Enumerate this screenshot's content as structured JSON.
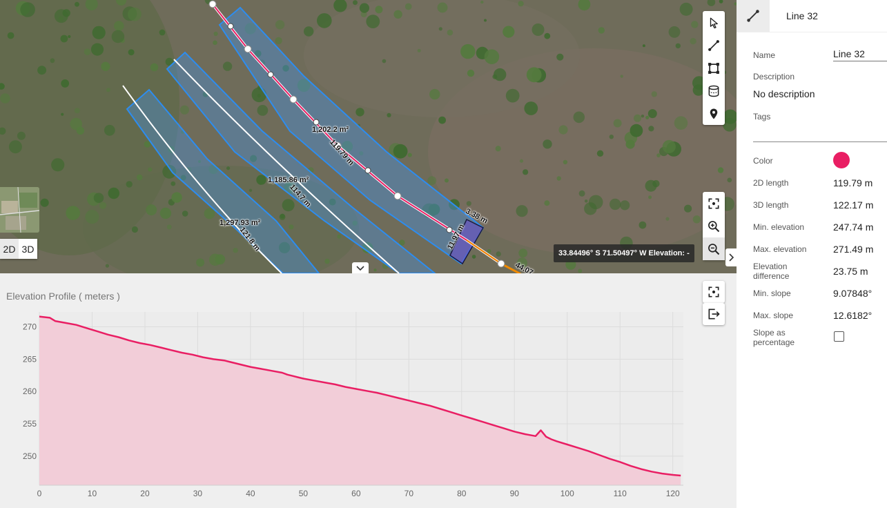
{
  "map": {
    "areas": [
      {
        "label": "1,202.2 m²"
      },
      {
        "label": "1,185.86 m²"
      },
      {
        "label": "1,297.93 m²"
      }
    ],
    "line_labels": [
      "119.79 m",
      "114.7 m",
      "121.8 m",
      "3.38 m",
      "11.97 m",
      "44.07"
    ],
    "coords": "33.84496° S 71.50497° W   Elevation: -",
    "dim_2d": "2D",
    "dim_3d": "3D",
    "tools": [
      "cursor-icon",
      "line-tool-icon",
      "area-tool-icon",
      "volume-tool-icon",
      "marker-icon"
    ],
    "zoom_tools": [
      "fit-view-icon",
      "zoom-in-icon",
      "zoom-out-icon"
    ],
    "colors": {
      "line": "#e91e63",
      "buffer_fill": "#4a8fd6",
      "buffer_stroke": "#2d8df0",
      "measure": "#f08a00"
    }
  },
  "elevation": {
    "title": "Elevation Profile ( meters )"
  },
  "chart_data": {
    "type": "area",
    "title": "Elevation Profile ( meters )",
    "xlabel": "",
    "ylabel": "",
    "xlim": [
      0,
      122
    ],
    "ylim": [
      245.5,
      272.3
    ],
    "xticks": [
      0,
      10,
      20,
      30,
      40,
      50,
      60,
      70,
      80,
      90,
      100,
      110,
      120
    ],
    "yticks": [
      250,
      255,
      260,
      265,
      270
    ],
    "grid": true,
    "color": "#e91e63",
    "fill": "#f2cdd8",
    "series": [
      {
        "name": "",
        "x": [
          0,
          2,
          3,
          5,
          7,
          9,
          11,
          13,
          15,
          17,
          19,
          21,
          23,
          25,
          27,
          29,
          31,
          33,
          35,
          36,
          37,
          38,
          40,
          42,
          44,
          46,
          47,
          48,
          49,
          50,
          52,
          54,
          56,
          58,
          60,
          62,
          64,
          66,
          68,
          70,
          72,
          74,
          76,
          78,
          80,
          82,
          84,
          86,
          88,
          90,
          92,
          94,
          95,
          96,
          97,
          98,
          100,
          102,
          104,
          106,
          108,
          110,
          112,
          114,
          116,
          118,
          120,
          121.5
        ],
        "y": [
          271.6,
          271.4,
          270.9,
          270.6,
          270.3,
          269.8,
          269.3,
          268.8,
          268.4,
          267.9,
          267.5,
          267.2,
          266.8,
          266.4,
          266.0,
          265.7,
          265.3,
          265.0,
          264.8,
          264.6,
          264.4,
          264.2,
          263.8,
          263.5,
          263.2,
          262.9,
          262.6,
          262.4,
          262.2,
          262.0,
          261.7,
          261.4,
          261.1,
          260.7,
          260.4,
          260.1,
          259.8,
          259.4,
          259.0,
          258.6,
          258.2,
          257.8,
          257.3,
          256.8,
          256.3,
          255.8,
          255.3,
          254.8,
          254.3,
          253.8,
          253.4,
          253.1,
          254.0,
          253.0,
          252.6,
          252.3,
          251.8,
          251.3,
          250.8,
          250.2,
          249.6,
          249.1,
          248.5,
          248.0,
          247.6,
          247.3,
          247.1,
          247.0
        ]
      }
    ]
  },
  "panel": {
    "title": "Line 32",
    "name_label": "Name",
    "name_value": "Line 32",
    "description_label": "Description",
    "description_value": "No description",
    "tags_label": "Tags",
    "color_label": "Color",
    "color_value": "#e91e63",
    "stats": [
      {
        "label": "2D length",
        "value": "119.79 m"
      },
      {
        "label": "3D length",
        "value": "122.17 m"
      },
      {
        "label": "Min. elevation",
        "value": "247.74 m"
      },
      {
        "label": "Max. elevation",
        "value": "271.49 m"
      },
      {
        "label": "Elevation difference",
        "value": "23.75 m"
      },
      {
        "label": "Min. slope",
        "value": "9.07848°"
      },
      {
        "label": "Max. slope",
        "value": "12.6182°"
      }
    ],
    "slope_pct_label": "Slope as percentage",
    "slope_pct_checked": false
  }
}
